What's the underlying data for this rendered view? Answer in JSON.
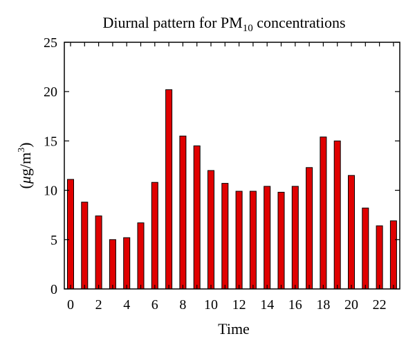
{
  "chart_data": {
    "type": "bar",
    "title": {
      "main": "Diurnal pattern for PM",
      "sub": "10",
      "end": " concentrations"
    },
    "xlabel": "Time",
    "ylabel": {
      "open": "(",
      "mu": "μ",
      "mid": "g/m",
      "sup": "3",
      "close": ")"
    },
    "ylim": [
      0,
      25
    ],
    "yticks": [
      "0",
      "5",
      "10",
      "15",
      "20",
      "25"
    ],
    "xticks": [
      "0",
      "2",
      "4",
      "6",
      "8",
      "10",
      "12",
      "14",
      "16",
      "18",
      "20",
      "22"
    ],
    "x": [
      0,
      1,
      2,
      3,
      4,
      5,
      6,
      7,
      8,
      9,
      10,
      11,
      12,
      13,
      14,
      15,
      16,
      17,
      18,
      19,
      20,
      21,
      22,
      23
    ],
    "values": [
      11.1,
      8.8,
      7.4,
      5.0,
      5.2,
      6.7,
      10.8,
      20.2,
      15.5,
      14.5,
      12.0,
      10.7,
      9.9,
      9.9,
      10.4,
      9.8,
      10.4,
      12.3,
      15.4,
      15.0,
      11.5,
      8.2,
      6.4,
      6.9
    ],
    "grid": false,
    "bar_color": "#e00000",
    "bar_edge_color": "#000000"
  }
}
